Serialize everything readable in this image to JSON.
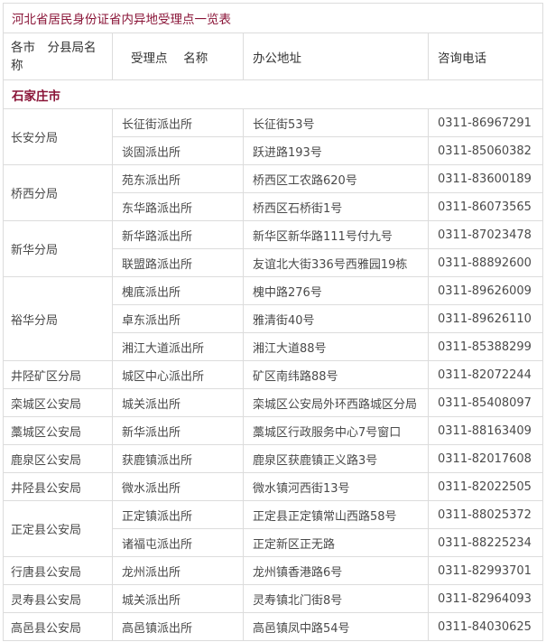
{
  "title": "河北省居民身份证省内异地受理点一览表",
  "headers": [
    "各市　分县局名称",
    "受理点　 名称",
    "办公地址",
    "咨询电话"
  ],
  "colors": {
    "accent": "#8a1538",
    "border": "#dcdcdc",
    "text": "#4a4a4a"
  },
  "city": "石家庄市",
  "groups": [
    {
      "bureau": "长安分局",
      "points": [
        {
          "name": "长征街派出所",
          "address": "长征街53号",
          "phone": "0311-86967291"
        },
        {
          "name": "谈固派出所",
          "address": "跃进路193号",
          "phone": "0311-85060382"
        }
      ]
    },
    {
      "bureau": "桥西分局",
      "points": [
        {
          "name": "苑东派出所",
          "address": "桥西区工农路620号",
          "phone": "0311-83600189"
        },
        {
          "name": "东华路派出所",
          "address": "桥西区石桥街1号",
          "phone": "0311-86073565"
        }
      ]
    },
    {
      "bureau": "新华分局",
      "points": [
        {
          "name": "新华路派出所",
          "address": "新华区新华路111号付九号",
          "phone": "0311-87023478"
        },
        {
          "name": "联盟路派出所",
          "address": "友谊北大街336号西雅园19栋",
          "phone": "0311-88892600"
        }
      ]
    },
    {
      "bureau": "裕华分局",
      "points": [
        {
          "name": "槐底派出所",
          "address": "槐中路276号",
          "phone": "0311-89626009"
        },
        {
          "name": "卓东派出所",
          "address": "雅清街40号",
          "phone": "0311-89626110"
        },
        {
          "name": "湘江大道派出所",
          "address": "湘江大道88号",
          "phone": "0311-85388299"
        }
      ]
    },
    {
      "bureau": "井陉矿区分局",
      "points": [
        {
          "name": "城区中心派出所",
          "address": "矿区南纬路88号",
          "phone": "0311-82072244"
        }
      ]
    },
    {
      "bureau": "栾城区公安局",
      "points": [
        {
          "name": "城关派出所",
          "address": "栾城区公安局外环西路城区分局",
          "phone": "0311-85408097"
        }
      ]
    },
    {
      "bureau": "藁城区公安局",
      "points": [
        {
          "name": "新华派出所",
          "address": "藁城区行政服务中心7号窗口",
          "phone": "0311-88163409"
        }
      ]
    },
    {
      "bureau": "鹿泉区公安局",
      "points": [
        {
          "name": "获鹿镇派出所",
          "address": "鹿泉区获鹿镇正义路3号",
          "phone": "0311-82017608"
        }
      ]
    },
    {
      "bureau": "井陉县公安局",
      "points": [
        {
          "name": "微水派出所",
          "address": "微水镇河西街13号",
          "phone": "0311-82022505"
        }
      ]
    },
    {
      "bureau": "正定县公安局",
      "points": [
        {
          "name": "正定镇派出所",
          "address": "正定县正定镇常山西路58号",
          "phone": "0311-88025372"
        },
        {
          "name": "诸福屯派出所",
          "address": "正定新区正无路",
          "phone": "0311-88225234"
        }
      ]
    },
    {
      "bureau": "行唐县公安局",
      "points": [
        {
          "name": "龙州派出所",
          "address": "龙州镇香港路6号",
          "phone": "0311-82993701"
        }
      ]
    },
    {
      "bureau": "灵寿县公安局",
      "points": [
        {
          "name": "城关派出所",
          "address": "灵寿镇北门街8号",
          "phone": "0311-82964093"
        }
      ]
    },
    {
      "bureau": "高邑县公安局",
      "points": [
        {
          "name": "高邑镇派出所",
          "address": "高邑镇凤中路54号",
          "phone": "0311-84030625"
        }
      ]
    }
  ]
}
